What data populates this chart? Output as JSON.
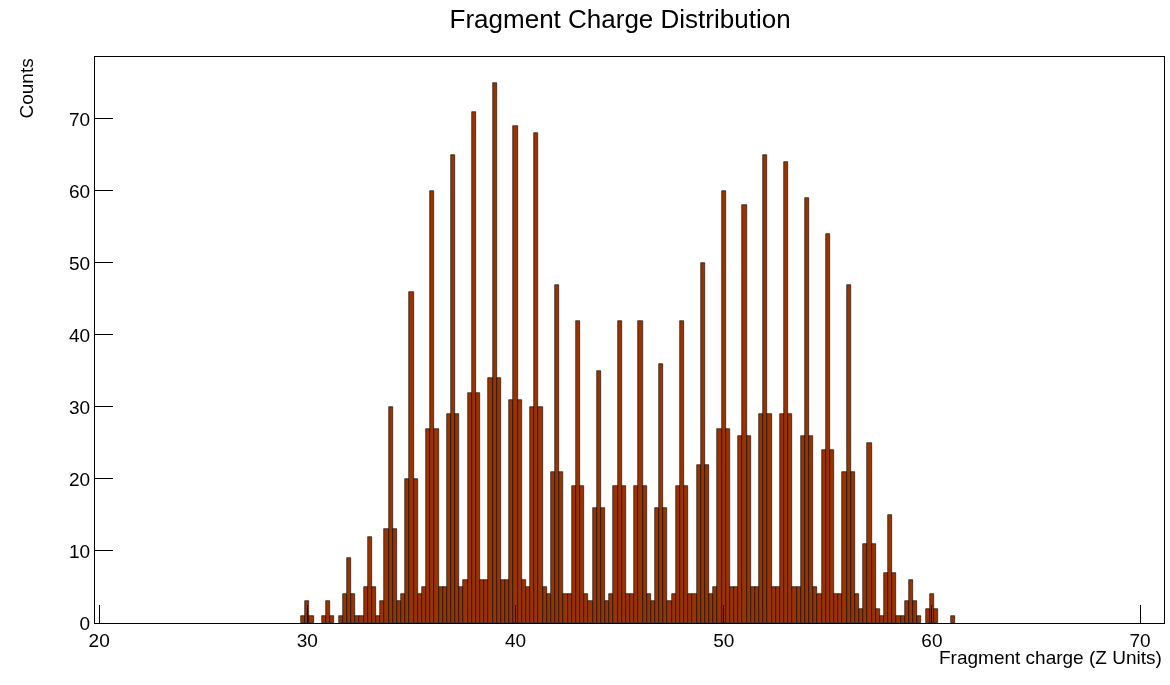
{
  "chart_data": {
    "type": "histogram",
    "title": "Fragment Charge Distribution",
    "xlabel": "Fragment charge (Z Units)",
    "ylabel": "Counts",
    "color": "#993300",
    "bins": [
      29.5,
      29.7,
      29.9,
      30.1,
      30.3,
      30.5,
      30.7,
      30.9,
      31.1,
      31.3,
      31.5,
      31.7,
      31.9,
      32.1,
      32.3,
      32.5,
      32.7,
      32.9,
      33.1,
      33.3,
      33.5,
      33.7,
      33.9,
      34.1,
      34.3,
      34.5,
      34.7,
      34.9,
      35.1,
      35.3,
      35.5,
      35.7,
      35.9,
      36.1,
      36.3,
      36.5,
      36.7,
      36.9,
      37.1,
      37.3,
      37.5,
      37.7,
      37.9,
      38.1,
      38.3,
      38.5,
      38.7,
      38.9,
      39.1,
      39.3,
      39.5,
      39.7,
      39.9,
      40.1,
      40.3,
      40.5,
      40.7,
      40.9,
      41.1,
      41.3,
      41.5,
      41.7,
      41.9,
      42.1,
      42.3,
      42.5,
      42.7,
      42.9,
      43.1,
      43.3,
      43.5,
      43.7,
      43.9,
      44.1,
      44.3,
      44.5,
      44.7,
      44.9,
      45.1,
      45.3,
      45.5,
      45.7,
      45.9,
      46.1,
      46.3,
      46.5,
      46.7,
      46.9,
      47.1,
      47.3,
      47.5,
      47.7,
      47.9,
      48.1,
      48.3,
      48.5,
      48.7,
      48.9,
      49.1,
      49.3,
      49.5,
      49.7,
      49.9,
      50.1,
      50.3,
      50.5,
      50.7,
      50.9,
      51.1,
      51.3,
      51.5,
      51.7,
      51.9,
      52.1,
      52.3,
      52.5,
      52.7,
      52.9,
      53.1,
      53.3,
      53.5,
      53.7,
      53.9,
      54.1,
      54.3,
      54.5,
      54.7,
      54.9,
      55.1,
      55.3,
      55.5,
      55.7,
      55.9,
      56.1,
      56.3,
      56.5,
      56.7,
      56.9,
      57.1,
      57.3,
      57.5,
      57.7,
      57.9,
      58.1,
      58.3,
      58.5,
      58.7,
      58.9,
      59.1,
      59.3,
      59.5,
      59.7,
      59.9,
      60.1,
      60.3,
      60.5,
      60.7,
      60.9,
      61.1,
      61.3,
      61.5
    ],
    "values": [
      0,
      1,
      3,
      1,
      0,
      0,
      1,
      3,
      1,
      0,
      1,
      4,
      9,
      4,
      1,
      1,
      5,
      12,
      5,
      1,
      3,
      13,
      30,
      13,
      3,
      4,
      20,
      46,
      20,
      4,
      5,
      27,
      60,
      27,
      5,
      5,
      29,
      65,
      29,
      5,
      6,
      32,
      71,
      32,
      6,
      6,
      34,
      75,
      34,
      6,
      6,
      31,
      69,
      31,
      6,
      5,
      30,
      68,
      30,
      5,
      4,
      21,
      47,
      21,
      4,
      4,
      19,
      42,
      19,
      4,
      3,
      16,
      35,
      16,
      3,
      4,
      19,
      42,
      19,
      4,
      4,
      19,
      42,
      19,
      4,
      3,
      16,
      36,
      16,
      3,
      4,
      19,
      42,
      19,
      4,
      4,
      22,
      50,
      22,
      4,
      5,
      27,
      60,
      27,
      5,
      5,
      26,
      58,
      26,
      5,
      5,
      29,
      65,
      29,
      5,
      5,
      29,
      64,
      29,
      5,
      5,
      26,
      59,
      26,
      5,
      4,
      24,
      54,
      24,
      4,
      4,
      21,
      47,
      21,
      4,
      2,
      11,
      25,
      11,
      2,
      1,
      7,
      15,
      7,
      1,
      1,
      3,
      6,
      3,
      1,
      0,
      2,
      4,
      2,
      0,
      0,
      0,
      1,
      0,
      0
    ],
    "xlim": [
      19.8,
      71.15
    ],
    "ylim": [
      0,
      78.6
    ],
    "xticks": [
      20,
      30,
      40,
      50,
      60,
      70
    ],
    "yticks": [
      0,
      10,
      20,
      30,
      40,
      50,
      60,
      70
    ]
  }
}
